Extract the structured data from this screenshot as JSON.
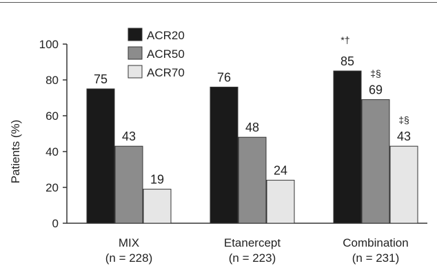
{
  "chart_data": {
    "type": "bar",
    "title": "",
    "xlabel": "",
    "ylabel": "Patients (%)",
    "ylim": [
      0,
      100
    ],
    "yticks": [
      "0",
      "20",
      "40",
      "60",
      "80",
      "100"
    ],
    "categories": [
      {
        "name": "MIX",
        "n_label": "(n = 228)"
      },
      {
        "name": "Etanercept",
        "n_label": "(n = 223)"
      },
      {
        "name": "Combination",
        "n_label": "(n = 231)"
      }
    ],
    "series": [
      {
        "name": "ACR20",
        "color": "#1a1a1a",
        "values": [
          75,
          76,
          85
        ],
        "markers": [
          "",
          "",
          "*†"
        ]
      },
      {
        "name": "ACR50",
        "color": "#8c8c8c",
        "values": [
          43,
          48,
          69
        ],
        "markers": [
          "",
          "",
          "‡§"
        ]
      },
      {
        "name": "ACR70",
        "color": "#e6e6e6",
        "values": [
          19,
          24,
          43
        ],
        "markers": [
          "",
          "",
          "‡§"
        ]
      }
    ],
    "legend_position": "top-left",
    "grid": false
  }
}
